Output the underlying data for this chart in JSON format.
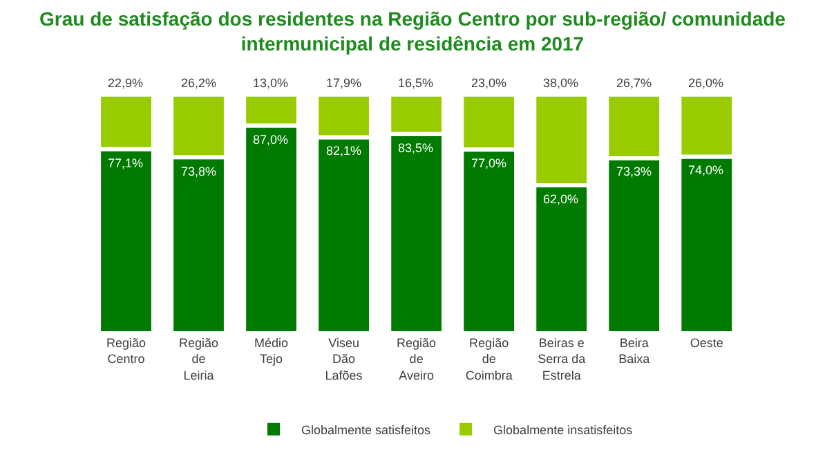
{
  "chart_data": {
    "type": "bar",
    "title": "Grau de satisfação dos residentes na Região Centro por sub-região/ comunidade intermunicipal de residência em 2017",
    "categories": [
      "Região Centro",
      "Região de Leiria",
      "Médio Tejo",
      "Viseu Dão Lafões",
      "Região de Aveiro",
      "Região de Coimbra",
      "Beiras e Serra da Estrela",
      "Beira Baixa",
      "Oeste"
    ],
    "stacked": true,
    "legend": "bottom",
    "series": [
      {
        "name": "Globalmente satisfeitos",
        "color": "#007a00",
        "values": [
          77.1,
          73.8,
          87.0,
          82.1,
          83.5,
          77.0,
          62.0,
          73.3,
          74.0
        ],
        "value_labels": [
          "77,1%",
          "73,8%",
          "87,0%",
          "82,1%",
          "83,5%",
          "77,0%",
          "62,0%",
          "73,3%",
          "74,0%"
        ]
      },
      {
        "name": "Globalmente insatisfeitos",
        "color": "#99cc00",
        "values": [
          22.9,
          26.2,
          13.0,
          17.9,
          16.5,
          23.0,
          38.0,
          26.7,
          26.0
        ],
        "value_labels": [
          "22,9%",
          "26,2%",
          "13,0%",
          "17,9%",
          "16,5%",
          "23,0%",
          "38,0%",
          "26,7%",
          "26,0%"
        ]
      }
    ]
  }
}
